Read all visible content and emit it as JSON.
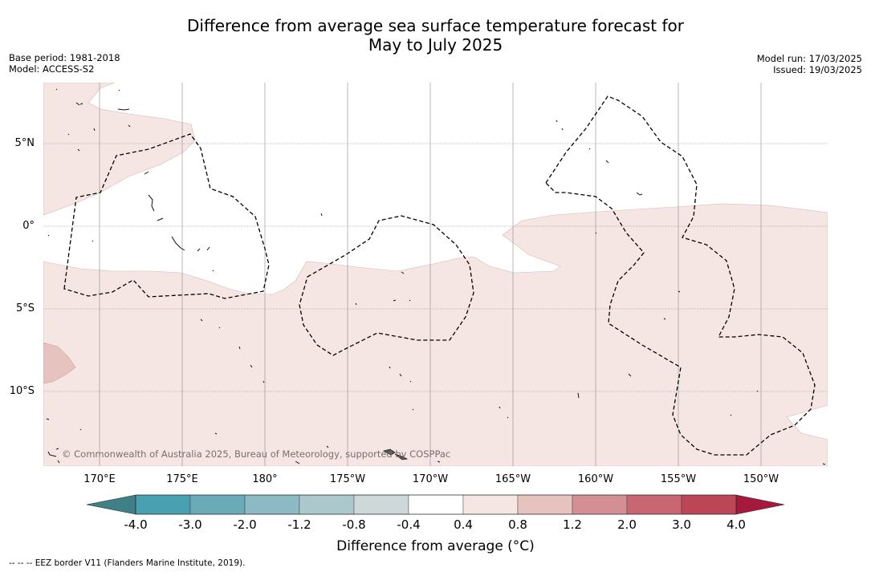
{
  "title_line1": "Difference from average sea surface temperature forecast for",
  "title_line2": "May to July 2025",
  "base_period": "Base period: 1981-2018",
  "model": "Model: ACCESS-S2",
  "model_run": "Model run: 17/03/2025",
  "issued": "Issued: 19/03/2025",
  "lat_labels": [
    "5°N",
    "0°",
    "5°S",
    "10°S"
  ],
  "lon_labels": [
    "170°E",
    "175°E",
    "180°",
    "175°W",
    "170°W",
    "165°W",
    "160°W",
    "155°W",
    "150°W"
  ],
  "copyright": "© Commonwealth of Australia 2025, Bureau of Meteorology, supported by COSPPac",
  "colorbar": {
    "title": "Difference from average (°C)",
    "ticks": [
      "-4.0",
      "-3.0",
      "-2.0",
      "-1.2",
      "-0.8",
      "-0.4",
      "0.4",
      "0.8",
      "1.2",
      "2.0",
      "3.0",
      "4.0"
    ],
    "colors": {
      "under": "#3f7f86",
      "bins": [
        "#49a0b0",
        "#6babb8",
        "#8cb9c3",
        "#abc8cc",
        "#cfd8d8",
        "#ffffff",
        "#f5e6e4",
        "#e6c3bf",
        "#d48f95",
        "#c86672",
        "#bd4656"
      ],
      "over": "#a4193c"
    }
  },
  "footnote": "--  --  -- EEZ border V11 (Flanders Marine Institute, 2019).",
  "map_colors": {
    "anomaly_0_4_to_0_8": "#f5e6e4",
    "anomaly_0_8_to_1_2": "#e6c3bf",
    "eez_border": "#000000",
    "grid": "#8a8a8a"
  }
}
